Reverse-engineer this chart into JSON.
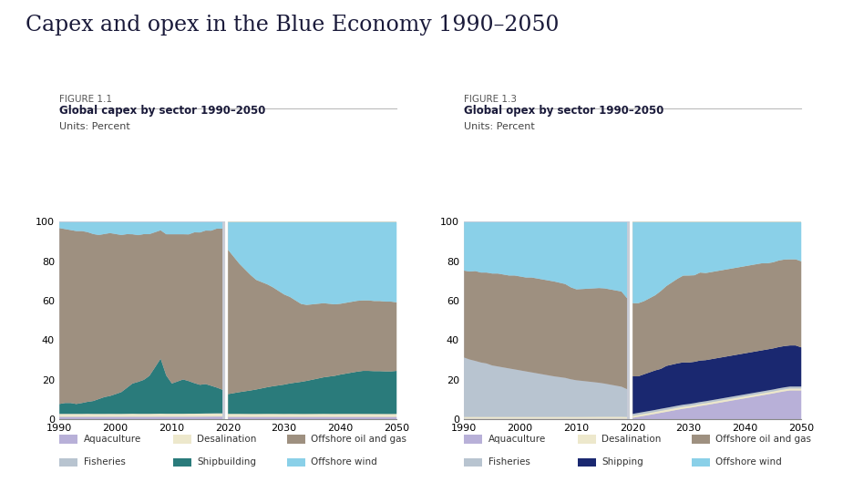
{
  "title": "Capex and opex in the Blue Economy 1990–2050",
  "fig1_label": "FIGURE 1.1",
  "fig1_subtitle": "Global capex by sector 1990–2050",
  "fig1_units": "Units: Percent",
  "fig2_label": "FIGURE 1.3",
  "fig2_subtitle": "Global opex by sector 1990–2050",
  "fig2_units": "Units: Percent",
  "years_hist": [
    1990,
    1991,
    1992,
    1993,
    1994,
    1995,
    1996,
    1997,
    1998,
    1999,
    2000,
    2001,
    2002,
    2003,
    2004,
    2005,
    2006,
    2007,
    2008,
    2009,
    2010,
    2011,
    2012,
    2013,
    2014,
    2015,
    2016,
    2017,
    2018,
    2019
  ],
  "years_proj": [
    2020,
    2021,
    2022,
    2023,
    2024,
    2025,
    2026,
    2027,
    2028,
    2029,
    2030,
    2031,
    2032,
    2033,
    2034,
    2035,
    2036,
    2037,
    2038,
    2039,
    2040,
    2041,
    2042,
    2043,
    2044,
    2045,
    2046,
    2047,
    2048,
    2049,
    2050
  ],
  "capex_hist": {
    "aquaculture": [
      1.5,
      1.5,
      1.5,
      1.5,
      1.5,
      1.5,
      1.5,
      1.5,
      1.5,
      1.5,
      1.5,
      1.5,
      1.5,
      1.5,
      1.5,
      1.5,
      1.5,
      1.5,
      1.5,
      1.5,
      1.5,
      1.5,
      1.5,
      1.5,
      1.5,
      1.5,
      1.5,
      1.5,
      1.5,
      1.5
    ],
    "desalination": [
      1.5,
      1.5,
      1.5,
      1.5,
      1.5,
      1.5,
      1.5,
      1.5,
      1.5,
      1.5,
      1.5,
      1.5,
      1.5,
      1.5,
      1.5,
      1.5,
      1.5,
      1.5,
      1.5,
      1.5,
      1.5,
      1.5,
      1.5,
      1.5,
      1.5,
      1.5,
      1.5,
      1.5,
      1.5,
      1.5
    ],
    "shipbuilding": [
      5,
      5.5,
      5.5,
      5,
      5.5,
      6,
      6.5,
      7.5,
      8.5,
      9,
      10,
      11,
      13,
      15,
      16,
      17,
      19,
      23,
      27,
      19,
      15,
      16,
      17,
      16,
      15,
      14,
      14,
      13,
      12,
      11
    ],
    "offshore_oilgas": [
      89,
      88,
      87.5,
      87.5,
      87,
      85,
      84.5,
      83,
      82.5,
      82,
      81,
      79.5,
      77,
      74,
      73.5,
      73,
      71,
      67,
      63,
      70,
      74,
      73,
      72,
      72,
      74,
      74,
      73,
      73,
      74,
      75
    ],
    "offshore_wind": [
      3,
      3.5,
      4,
      4.5,
      4.5,
      5,
      6,
      6.5,
      6,
      5.5,
      6,
      6.5,
      6,
      6,
      6.5,
      6,
      6,
      5,
      4,
      6,
      6,
      6,
      6,
      6,
      5,
      5,
      4,
      4,
      3,
      3
    ]
  },
  "capex_proj": {
    "aquaculture": [
      1.5,
      1.5,
      1.5,
      1.5,
      1.5,
      1.5,
      1.5,
      1.5,
      1.5,
      1.5,
      1.5,
      1.5,
      1.5,
      1.5,
      1.5,
      1.5,
      1.5,
      1.5,
      1.5,
      1.5,
      1.5,
      1.5,
      1.5,
      1.5,
      1.5,
      1.5,
      1.5,
      1.5,
      1.5,
      1.5,
      1.5
    ],
    "desalination": [
      1.5,
      1.5,
      1.5,
      1.5,
      1.5,
      1.5,
      1.5,
      1.5,
      1.5,
      1.5,
      1.5,
      1.5,
      1.5,
      1.5,
      1.5,
      1.5,
      1.5,
      1.5,
      1.5,
      1.5,
      1.5,
      1.5,
      1.5,
      1.5,
      1.5,
      1.5,
      1.5,
      1.5,
      1.5,
      1.5,
      1.5
    ],
    "shipbuilding": [
      10,
      10.5,
      11,
      11.5,
      12,
      12.5,
      13,
      13.5,
      14,
      14.5,
      15,
      15.5,
      16,
      16.5,
      17,
      17.5,
      18,
      18.5,
      19,
      19.5,
      20,
      20.5,
      21,
      21.5,
      22,
      22,
      22,
      22,
      22,
      22,
      22
    ],
    "offshore_oilgas": [
      73,
      69,
      65,
      62,
      59,
      56,
      54,
      52,
      50,
      48,
      46,
      44,
      42,
      40,
      39,
      38.5,
      38,
      37.5,
      37,
      36.5,
      36,
      36,
      36,
      36,
      36,
      36,
      36,
      36,
      36,
      36,
      35
    ],
    "offshore_wind": [
      14,
      17.5,
      21,
      24,
      27,
      29.5,
      30.5,
      31.5,
      33,
      35,
      37,
      38,
      40,
      42,
      42.5,
      42,
      41.5,
      41,
      41.5,
      42,
      41.5,
      41,
      40.5,
      40,
      40,
      40,
      40.5,
      40.5,
      41,
      41,
      41
    ]
  },
  "opex_hist": {
    "aquaculture": [
      0.5,
      0.5,
      0.5,
      0.5,
      0.5,
      0.5,
      0.5,
      0.5,
      0.5,
      0.5,
      0.5,
      0.5,
      0.5,
      0.5,
      0.5,
      0.5,
      0.5,
      0.5,
      0.5,
      0.5,
      0.5,
      0.5,
      0.5,
      0.5,
      0.5,
      0.5,
      0.5,
      0.5,
      0.5,
      0.5
    ],
    "desalination": [
      1,
      1,
      1,
      1,
      1,
      1,
      1,
      1,
      1,
      1,
      1,
      1,
      1,
      1,
      1,
      1,
      1,
      1,
      1,
      1,
      1,
      1,
      1,
      1,
      1,
      1,
      1,
      1,
      1,
      1
    ],
    "fisheries": [
      30,
      29,
      28,
      27.5,
      27,
      26,
      25.5,
      25,
      24.5,
      24,
      23.5,
      23,
      22.5,
      22,
      21.5,
      21,
      20.5,
      20,
      19.5,
      19,
      18.5,
      18,
      17.5,
      17,
      16.5,
      16,
      15.5,
      15,
      14.5,
      14
    ],
    "offshore_oilgas": [
      44,
      44.5,
      45,
      45.5,
      46,
      46.5,
      47,
      47,
      47,
      47.5,
      47.5,
      47.5,
      48,
      48,
      48,
      48,
      48,
      47.5,
      47,
      46.5,
      46,
      46,
      46,
      46,
      46,
      46,
      46,
      46,
      46,
      46
    ],
    "shipping_dummy": [
      0,
      0,
      0,
      0,
      0,
      0,
      0,
      0,
      0,
      0,
      0,
      0,
      0,
      0,
      0,
      0,
      0,
      0,
      0,
      0,
      0,
      0,
      0,
      0,
      0,
      0,
      0,
      0,
      0,
      0
    ],
    "offshore_wind": [
      24.5,
      25,
      24.5,
      25.5,
      25.5,
      26,
      26,
      26.5,
      27,
      27,
      27.5,
      28,
      28,
      28.5,
      29,
      29.5,
      30,
      30.5,
      31,
      33,
      34,
      33.5,
      33,
      32.5,
      32,
      32,
      32.5,
      33,
      33.5,
      38.5
    ]
  },
  "opex_proj": {
    "aquaculture": [
      1,
      1.5,
      2,
      2.5,
      3,
      3.5,
      4,
      4.5,
      5,
      5.5,
      6,
      6.5,
      7,
      7.5,
      8,
      8.5,
      9,
      9.5,
      10,
      10.5,
      11,
      11.5,
      12,
      12.5,
      13,
      13.5,
      14,
      14.5,
      15,
      15,
      15
    ],
    "desalination": [
      1,
      1,
      1,
      1,
      1,
      1,
      1,
      1,
      1,
      1,
      1,
      1,
      1,
      1,
      1,
      1,
      1,
      1,
      1,
      1,
      1,
      1,
      1,
      1,
      1,
      1,
      1,
      1,
      1,
      1,
      1
    ],
    "fisheries": [
      1,
      1,
      1,
      1,
      1,
      1,
      1,
      1,
      1,
      1,
      1,
      1,
      1,
      1,
      1,
      1,
      1,
      1,
      1,
      1,
      1,
      1,
      1,
      1,
      1,
      1,
      1,
      1,
      1,
      1,
      1
    ],
    "offshore_oilgas": [
      37,
      37,
      37,
      37.5,
      38,
      39,
      40,
      41,
      42,
      43,
      44,
      44,
      44.5,
      44.5,
      44.5,
      44.5,
      44.5,
      44.5,
      44.5,
      44.5,
      44.5,
      44.5,
      44.5,
      44.5,
      44,
      44,
      44,
      44,
      44,
      44,
      44
    ],
    "shipping_dummy": [
      19,
      18.5,
      19,
      19.5,
      20,
      20,
      21,
      21,
      21,
      21,
      21,
      21,
      21,
      21,
      21,
      21,
      21,
      21,
      21,
      21,
      21,
      21,
      21,
      21,
      21,
      21,
      21,
      21,
      21,
      21,
      20
    ],
    "offshore_wind": [
      41,
      41,
      40,
      38.5,
      37,
      34.5,
      32,
      30,
      28,
      26.5,
      27,
      27,
      25.5,
      26,
      25.5,
      25,
      24.5,
      24,
      23.5,
      23,
      22.5,
      22,
      21.5,
      21,
      21,
      20.5,
      19.5,
      19,
      19,
      19,
      20
    ]
  },
  "colors": {
    "aquaculture": "#b8b0d8",
    "desalination": "#ede8cc",
    "fisheries": "#b8c4d0",
    "shipbuilding": "#2a7b7b",
    "shipping": "#1a2870",
    "shipping_dummy": "#1a2870",
    "offshore_oilgas": "#9e9080",
    "offshore_wind": "#8ad0e8"
  },
  "hist_bg_color": "#c8ccd8",
  "proj_bg_color": "#ddd8c8",
  "legend1": [
    {
      "label": "Aquaculture",
      "color": "#b8b0d8"
    },
    {
      "label": "Desalination",
      "color": "#ede8cc"
    },
    {
      "label": "Offshore oil and gas",
      "color": "#9e9080"
    },
    {
      "label": "Fisheries",
      "color": "#b8c4d0"
    },
    {
      "label": "Shipbuilding",
      "color": "#2a7b7b"
    },
    {
      "label": "Offshore wind",
      "color": "#8ad0e8"
    }
  ],
  "legend2": [
    {
      "label": "Aquaculture",
      "color": "#b8b0d8"
    },
    {
      "label": "Desalination",
      "color": "#ede8cc"
    },
    {
      "label": "Offshore oil and gas",
      "color": "#9e9080"
    },
    {
      "label": "Fisheries",
      "color": "#b8c4d0"
    },
    {
      "label": "Shipping",
      "color": "#1a2870"
    },
    {
      "label": "Offshore wind",
      "color": "#8ad0e8"
    }
  ]
}
